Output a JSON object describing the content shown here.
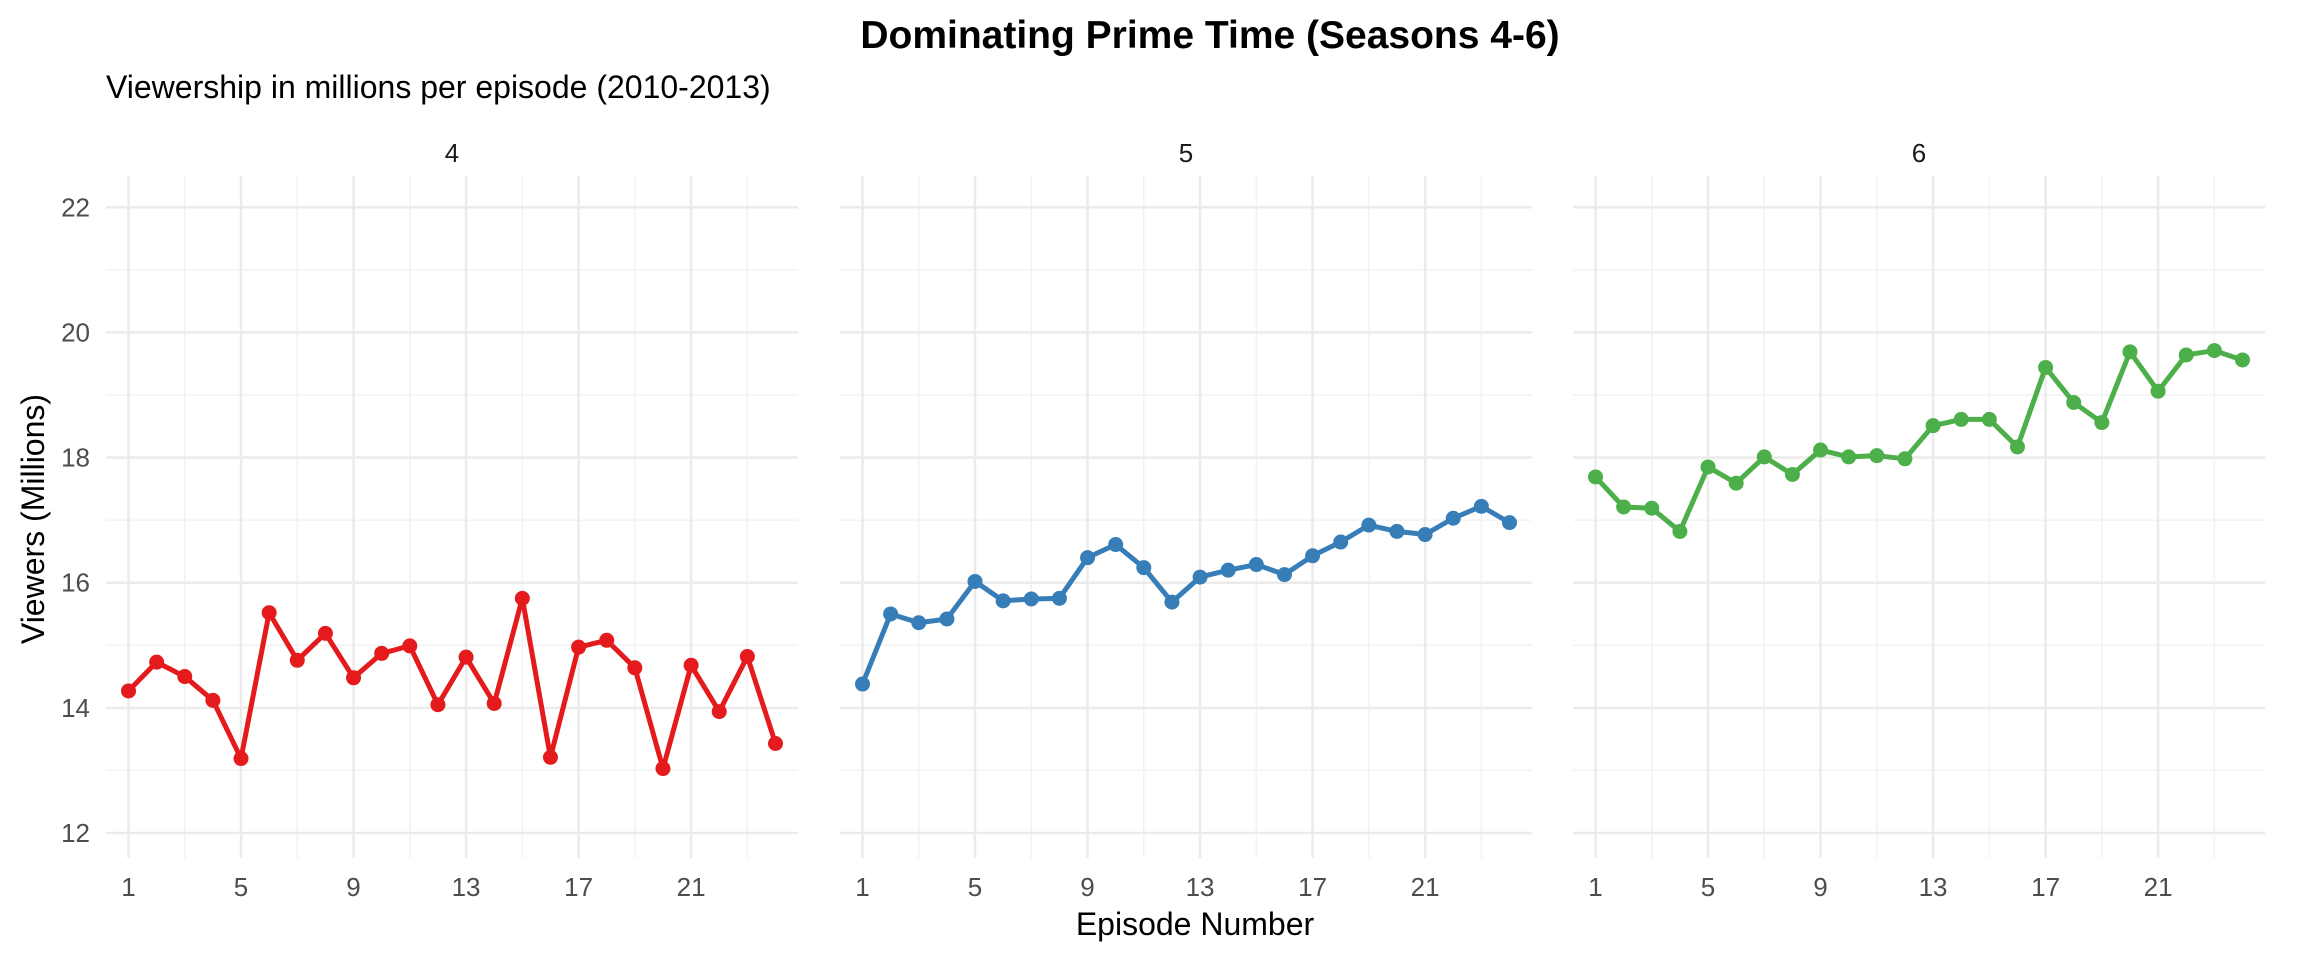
{
  "chart_data": {
    "type": "line",
    "title": "Dominating Prime Time (Seasons 4-6)",
    "subtitle": "Viewership in millions per episode (2010-2013)",
    "xlabel": "Episode Number",
    "ylabel": "Viewers (Millions)",
    "xlim": [
      0.2,
      24.8
    ],
    "ylim": [
      11.6,
      22.5
    ],
    "x_ticks": [
      1,
      5,
      9,
      13,
      17,
      21
    ],
    "y_ticks": [
      12,
      14,
      16,
      18,
      20,
      22
    ],
    "grid": true,
    "legend": "none",
    "facet_by": "season",
    "x": [
      1,
      2,
      3,
      4,
      5,
      6,
      7,
      8,
      9,
      10,
      11,
      12,
      13,
      14,
      15,
      16,
      17,
      18,
      19,
      20,
      21,
      22,
      23,
      24
    ],
    "series": [
      {
        "name": "4",
        "color": "#e41a1c",
        "values": [
          14.27,
          14.73,
          14.5,
          14.12,
          13.19,
          15.52,
          14.76,
          15.19,
          14.48,
          14.87,
          14.99,
          14.05,
          14.81,
          14.07,
          15.75,
          13.21,
          14.97,
          15.08,
          14.64,
          13.03,
          14.68,
          13.94,
          14.82,
          13.43
        ]
      },
      {
        "name": "5",
        "color": "#377eb8",
        "values": [
          14.38,
          15.5,
          15.36,
          15.42,
          16.02,
          15.71,
          15.74,
          15.75,
          16.4,
          16.61,
          16.24,
          15.69,
          16.09,
          16.2,
          16.29,
          16.13,
          16.43,
          16.65,
          16.92,
          16.82,
          16.77,
          17.03,
          17.22,
          16.96
        ]
      },
      {
        "name": "6",
        "color": "#4daf4a",
        "values": [
          17.69,
          17.21,
          17.19,
          16.82,
          17.85,
          17.59,
          18.01,
          17.73,
          18.12,
          18.01,
          18.03,
          17.98,
          18.51,
          18.61,
          18.61,
          18.17,
          19.44,
          18.88,
          18.56,
          19.69,
          19.06,
          19.64,
          19.71,
          19.56
        ]
      }
    ]
  }
}
